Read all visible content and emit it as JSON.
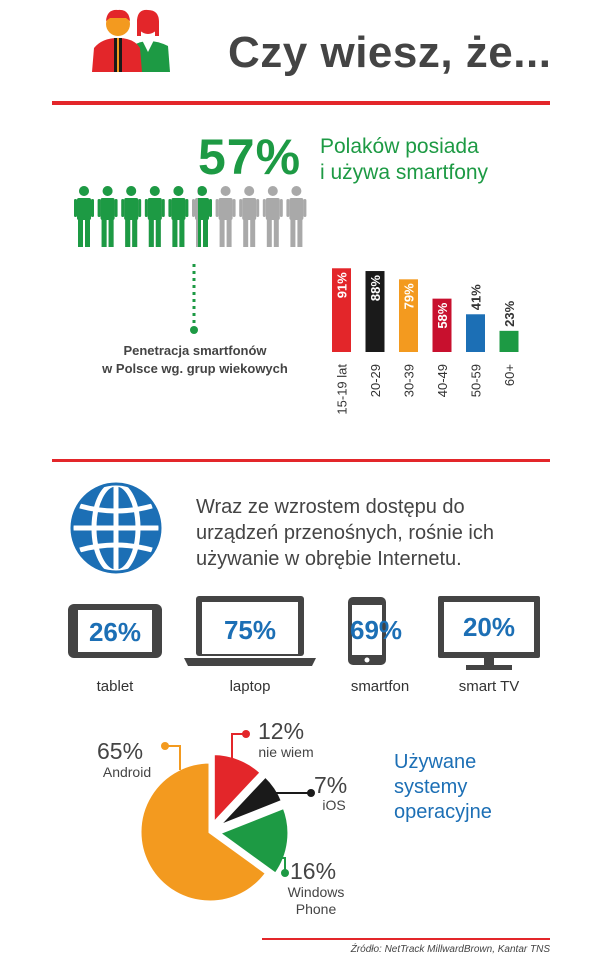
{
  "header": {
    "title": "Czy wiesz, że..."
  },
  "smartphone": {
    "percent_label": "57%",
    "text_line1": "Polaków posiada",
    "text_line2": "i używa smartfony",
    "people_total": 10,
    "people_filled": 5.7,
    "colors": {
      "filled": "#1d9a44",
      "empty": "#a9a9a9"
    }
  },
  "penetration": {
    "label_line1": "Penetracja smartfonów",
    "label_line2": "w Polsce wg. grup wiekowych"
  },
  "internet": {
    "text_line1": "Wraz ze wzrostem dostępu do",
    "text_line2": "urządzeń przenośnych, rośnie ich",
    "text_line3": "używanie w obrębie Internetu."
  },
  "devices": [
    {
      "name": "tablet",
      "value": "26%"
    },
    {
      "name": "laptop",
      "value": "75%"
    },
    {
      "name": "smartfon",
      "value": "69%"
    },
    {
      "name": "smart TV",
      "value": "20%"
    }
  ],
  "os": {
    "title_line1": "Używane",
    "title_line2": "systemy",
    "title_line3": "operacyjne"
  },
  "source": "Źródło: NetTrack MillwardBrown, Kantar TNS",
  "chart_data": [
    {
      "type": "bar",
      "categories": [
        "15-19 lat",
        "20-29",
        "30-39",
        "40-49",
        "50-59",
        "60+"
      ],
      "values": [
        91,
        88,
        79,
        58,
        41,
        23
      ],
      "labels": [
        "91%",
        "88%",
        "79%",
        "58%",
        "41%",
        "23%"
      ],
      "colors": [
        "#e3262a",
        "#1a1a1a",
        "#f39a1f",
        "#c8102e",
        "#1c6fb5",
        "#1d9a44"
      ],
      "ylim": [
        0,
        100
      ],
      "grid": false
    },
    {
      "type": "pie",
      "slices": [
        {
          "name": "nie wiem",
          "value": 12,
          "label": "12%",
          "color": "#e3262a"
        },
        {
          "name": "iOS",
          "value": 7,
          "label": "7%",
          "color": "#1a1a1a"
        },
        {
          "name": "Windows Phone",
          "value": 16,
          "label": "16%",
          "color": "#1d9a44"
        },
        {
          "name": "Android",
          "value": 65,
          "label": "65%",
          "color": "#f39a1f"
        }
      ]
    }
  ]
}
